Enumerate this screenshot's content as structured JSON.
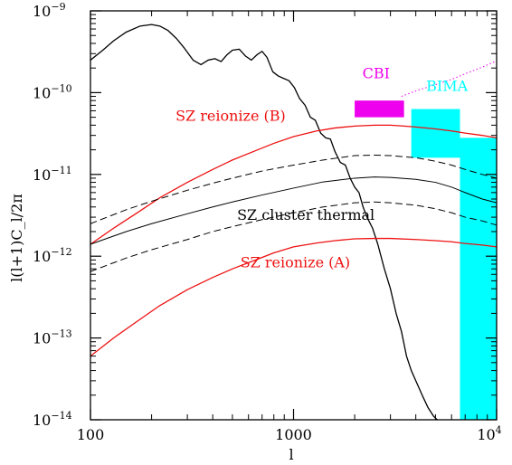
{
  "chart_data": {
    "type": "line",
    "xscale": "log",
    "yscale": "log",
    "xlim": [
      100,
      10000
    ],
    "ylim": [
      1e-14,
      1e-09
    ],
    "xlabel": "l",
    "ylabel": "l(l+1)C_l/2π",
    "x_ticks": [
      {
        "value": 100,
        "label": "100"
      },
      {
        "value": 1000,
        "label": "1000"
      },
      {
        "value": 10000,
        "label": "10",
        "exp": "4"
      }
    ],
    "y_ticks": [
      {
        "value": 1e-14,
        "label": "10",
        "exp": "−14"
      },
      {
        "value": 1e-13,
        "label": "10",
        "exp": "−13"
      },
      {
        "value": 1e-12,
        "label": "10",
        "exp": "−12"
      },
      {
        "value": 1e-11,
        "label": "10",
        "exp": "−11"
      },
      {
        "value": 1e-10,
        "label": "10",
        "exp": "−10"
      },
      {
        "value": 1e-09,
        "label": "10",
        "exp": "−9"
      }
    ],
    "colors": {
      "black": "#000000",
      "red": "#ee1111",
      "magenta": "#ee00ee",
      "cyan": "#00ffff"
    },
    "series": [
      {
        "color": "#000000",
        "style": "solid",
        "width": 1.3,
        "x": [
          100,
          115,
          130,
          150,
          175,
          200,
          220,
          240,
          265,
          290,
          320,
          350,
          380,
          410,
          440,
          470,
          500,
          540,
          580,
          620,
          660,
          700,
          740,
          790,
          840,
          890,
          950,
          1010,
          1070,
          1140,
          1210,
          1280,
          1360,
          1440,
          1520,
          1600,
          1700,
          1800,
          1900,
          2000,
          2100,
          2200,
          2300,
          2450,
          2600,
          2800,
          3000,
          3200,
          3400,
          3600,
          3800,
          4000,
          4300,
          4600,
          4900,
          5100
        ],
        "y": [
          2.5e-10,
          3.3e-10,
          4.3e-10,
          5.5e-10,
          6.5e-10,
          6.8e-10,
          6.5e-10,
          5.8e-10,
          4.6e-10,
          3.5e-10,
          2.5e-10,
          2.2e-10,
          2.5e-10,
          2.6e-10,
          2.4e-10,
          2.9e-10,
          3.3e-10,
          3.4e-10,
          2.8e-10,
          2.5e-10,
          2.9e-10,
          3.2e-10,
          2.7e-10,
          1.8e-10,
          1.6e-10,
          1.5e-10,
          1.4e-10,
          1.15e-10,
          8.5e-11,
          7e-11,
          5e-11,
          4.6e-11,
          3.2e-11,
          2.8e-11,
          2.7e-11,
          1.9e-11,
          1.4e-11,
          1.3e-11,
          9e-12,
          7e-12,
          6e-12,
          4e-12,
          3e-12,
          2.2e-12,
          1.4e-12,
          7e-13,
          4e-13,
          2e-13,
          1.2e-13,
          6e-14,
          4e-14,
          3e-14,
          2e-14,
          1.4e-14,
          1.1e-14,
          1e-14
        ]
      },
      {
        "color": "#ee1111",
        "style": "solid",
        "width": 1.3,
        "x": [
          100,
          130,
          170,
          220,
          300,
          400,
          500,
          650,
          800,
          1000,
          1300,
          1600,
          2000,
          2500,
          3000,
          3500,
          4000,
          5000,
          6000,
          7000,
          8500,
          10000
        ],
        "y": [
          1.4e-12,
          2.2e-12,
          3.4e-12,
          5.2e-12,
          8e-12,
          1.15e-11,
          1.5e-11,
          1.95e-11,
          2.4e-11,
          2.9e-11,
          3.4e-11,
          3.7e-11,
          3.9e-11,
          4e-11,
          4e-11,
          3.9e-11,
          3.8e-11,
          3.6e-11,
          3.4e-11,
          3.2e-11,
          3e-11,
          2.8e-11
        ]
      },
      {
        "color": "#ee1111",
        "style": "solid",
        "width": 1.3,
        "x": [
          100,
          130,
          170,
          220,
          300,
          400,
          500,
          650,
          800,
          1000,
          1300,
          1600,
          2000,
          2500,
          3000,
          4000,
          5000,
          6000,
          7000,
          8500,
          10000
        ],
        "y": [
          6e-14,
          1e-13,
          1.6e-13,
          2.5e-13,
          3.9e-13,
          5.5e-13,
          7e-13,
          9e-13,
          1.1e-12,
          1.3e-12,
          1.45e-12,
          1.55e-12,
          1.63e-12,
          1.65e-12,
          1.65e-12,
          1.6e-12,
          1.55e-12,
          1.5e-12,
          1.43e-12,
          1.37e-12,
          1.3e-12
        ]
      },
      {
        "color": "#000000",
        "style": "solid",
        "width": 1.0,
        "x": [
          100,
          150,
          200,
          300,
          400,
          500,
          700,
          1000,
          1400,
          2000,
          2500,
          3000,
          4000,
          5000,
          6000,
          7000,
          8500,
          10000
        ],
        "y": [
          1.4e-12,
          2e-12,
          2.5e-12,
          3.3e-12,
          4e-12,
          4.6e-12,
          5.6e-12,
          6.8e-12,
          8.1e-12,
          9e-12,
          9.3e-12,
          9.2e-12,
          8.7e-12,
          8e-12,
          7e-12,
          6e-12,
          5e-12,
          4.5e-12
        ]
      },
      {
        "color": "#000000",
        "style": "dashed",
        "width": 1.0,
        "x": [
          100,
          150,
          200,
          300,
          400,
          500,
          700,
          1000,
          1400,
          2000,
          2500,
          3000,
          4000,
          5000,
          6000,
          7000,
          8500,
          10000
        ],
        "y": [
          2.5e-12,
          3.7e-12,
          4.7e-12,
          6.4e-12,
          7.8e-12,
          9e-12,
          1.1e-11,
          1.3e-11,
          1.5e-11,
          1.7e-11,
          1.72e-11,
          1.7e-11,
          1.6e-11,
          1.45e-11,
          1.3e-11,
          1.15e-11,
          1e-11,
          9e-12
        ]
      },
      {
        "color": "#000000",
        "style": "dashed",
        "width": 1.0,
        "x": [
          100,
          150,
          200,
          300,
          400,
          500,
          700,
          1000,
          1400,
          2000,
          2500,
          3000,
          4000,
          5000,
          6000,
          7000,
          8500,
          10000
        ],
        "y": [
          6.5e-13,
          9.5e-13,
          1.2e-12,
          1.6e-12,
          2e-12,
          2.3e-12,
          2.8e-12,
          3.4e-12,
          4e-12,
          4.5e-12,
          4.6e-12,
          4.5e-12,
          4.2e-12,
          3.8e-12,
          3.4e-12,
          3e-12,
          2.7e-12,
          2.4e-12
        ]
      },
      {
        "color": "#ee00ee",
        "style": "dotted",
        "width": 1.0,
        "x": [
          3400,
          4000,
          5000,
          6000,
          7000,
          8500,
          10000
        ],
        "y": [
          9e-11,
          1.05e-10,
          1.25e-10,
          1.45e-10,
          1.7e-10,
          2.05e-10,
          2.45e-10
        ]
      }
    ],
    "boxes": [
      {
        "name": "CBI",
        "color": "#ee00ee",
        "x": [
          2000,
          3500
        ],
        "y": [
          5e-11,
          8e-11
        ]
      },
      {
        "name": "BIMA",
        "color": "#00ffff",
        "x": [
          3800,
          6600
        ],
        "y": [
          1.6e-11,
          6.3e-11
        ]
      },
      {
        "name": "BIMA",
        "color": "#00ffff",
        "x": [
          6600,
          10000
        ],
        "y": [
          1e-14,
          2.8e-11
        ]
      }
    ],
    "annotations": [
      {
        "text": "CBI",
        "color": "#ee00ee",
        "x": 2550,
        "y": 1.5e-10
      },
      {
        "text": "BIMA",
        "color": "#00ffff",
        "x": 5700,
        "y": 1.05e-10
      },
      {
        "text": "SZ reionize (B)",
        "color": "#ee1111",
        "x": 490,
        "y": 4.5e-11
      },
      {
        "text": "SZ cluster thermal",
        "color": "#000000",
        "x": 1150,
        "y": 2.8e-12
      },
      {
        "text": "SZ reionize (A)",
        "color": "#ee1111",
        "x": 1020,
        "y": 7.3e-13
      }
    ]
  }
}
